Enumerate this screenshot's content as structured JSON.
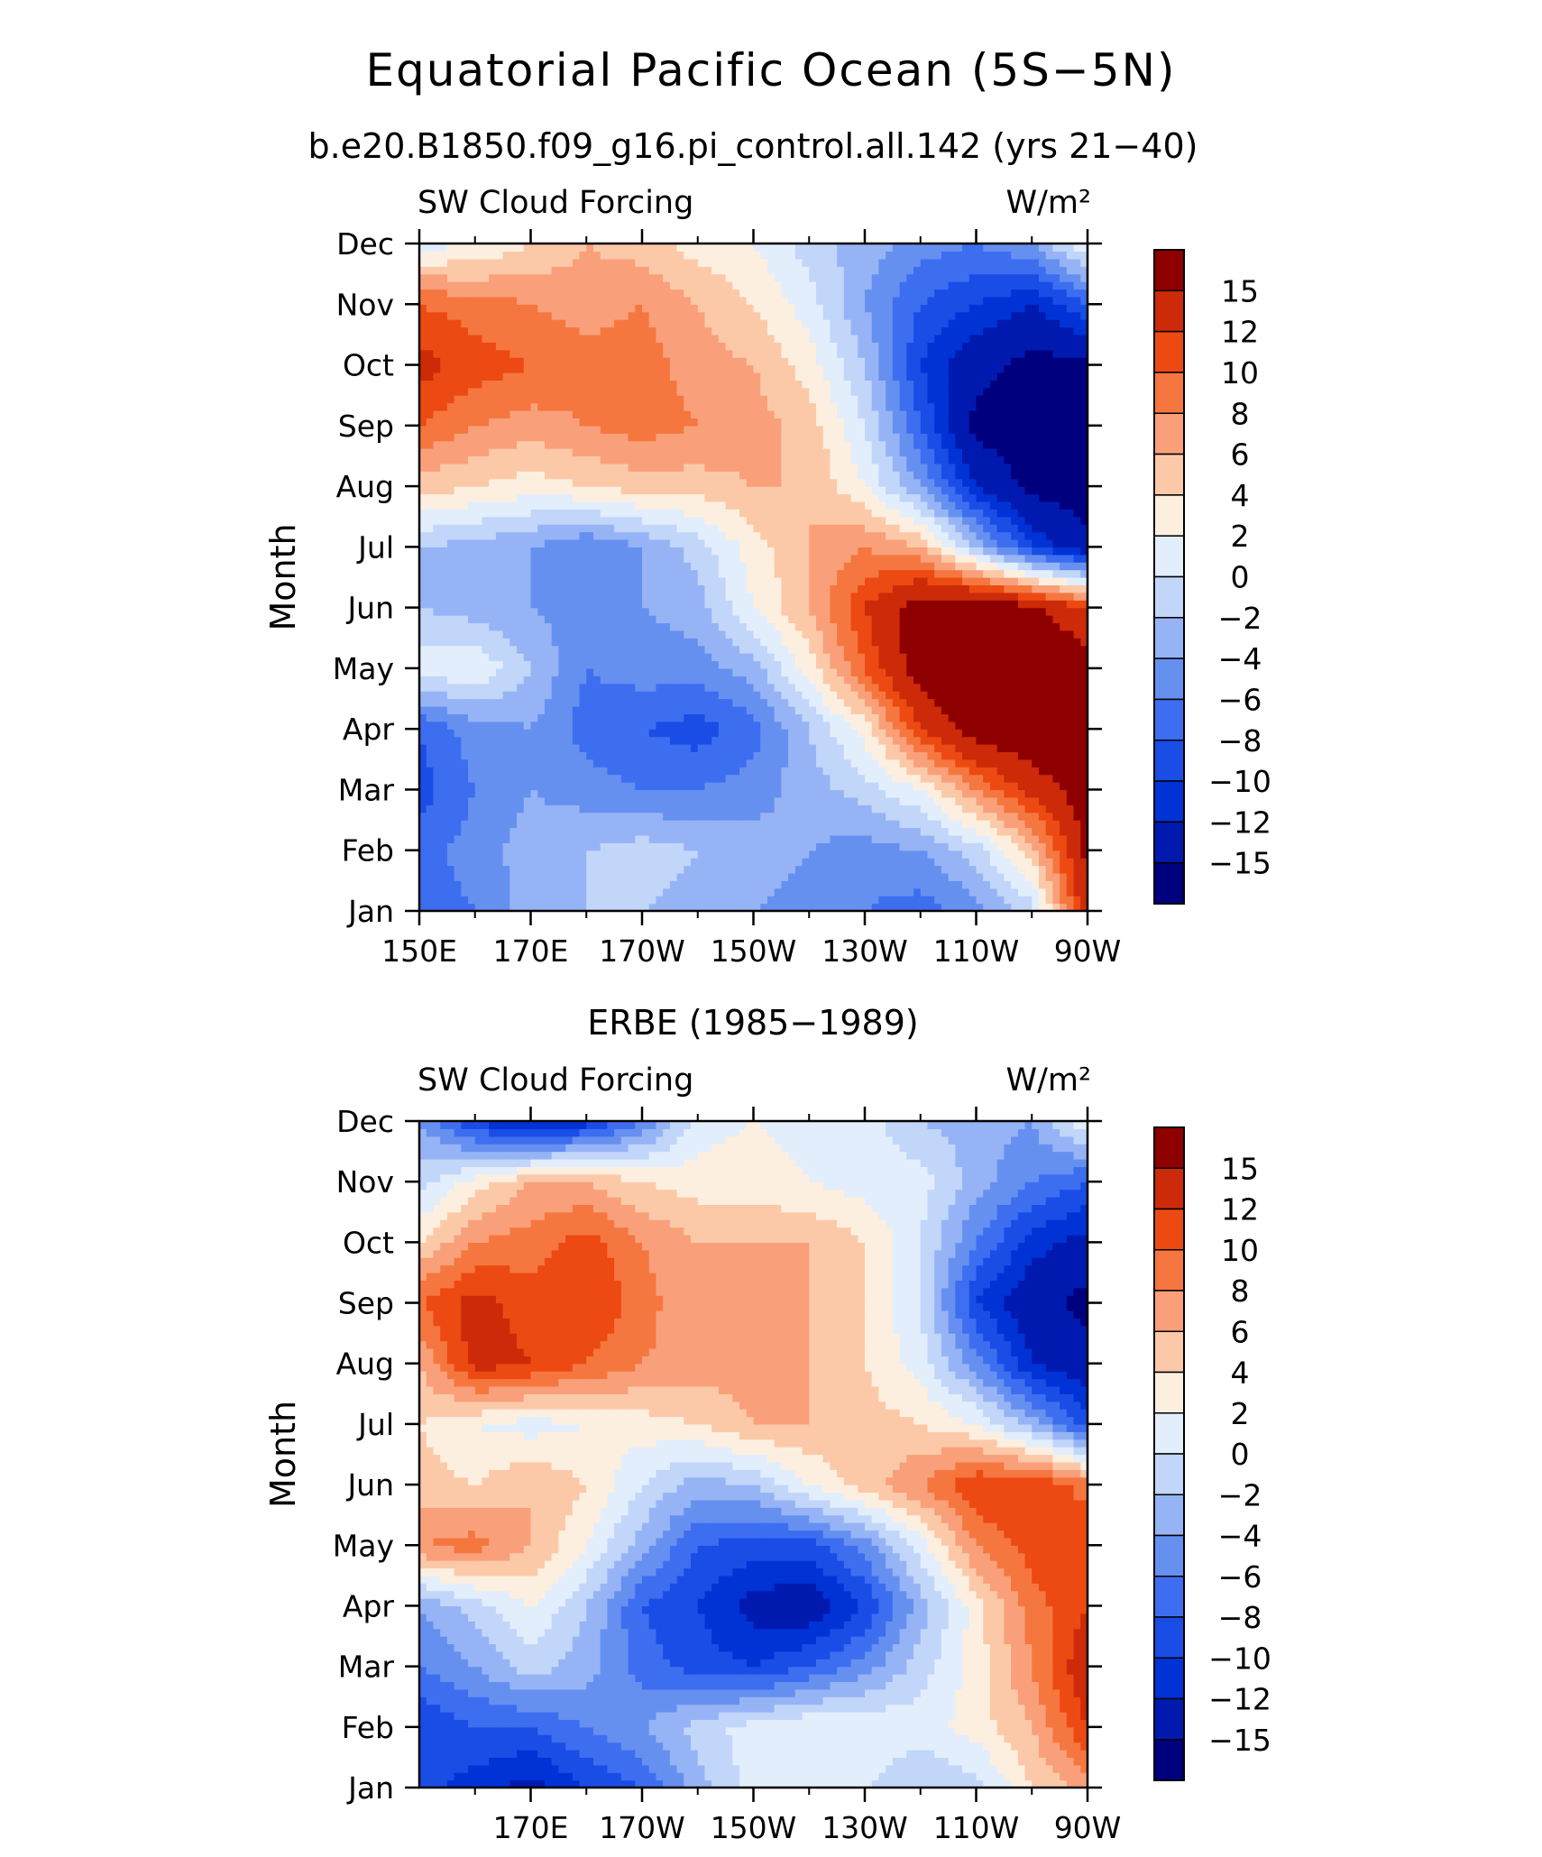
{
  "figure": {
    "title": "Equatorial Pacific Ocean (5S−5N)",
    "subtitle": "b.e20.B1850.f09_g16.pi_control.all.142 (yrs 21−40)",
    "second_title": "ERBE (1985−1989)"
  },
  "colorbar": {
    "levels": [
      -15,
      -12,
      -10,
      -8,
      -6,
      -4,
      -2,
      0,
      2,
      4,
      6,
      8,
      10,
      12,
      15
    ],
    "labels": [
      "15",
      "12",
      "10",
      "8",
      "6",
      "4",
      "2",
      "0",
      "−2",
      "−4",
      "−6",
      "−8",
      "−10",
      "−12",
      "−15"
    ],
    "colors": [
      "#00007f",
      "#001ab0",
      "#0033d6",
      "#1a4de6",
      "#3d6ef0",
      "#6690f0",
      "#96b4f5",
      "#c2d6fa",
      "#e2eefc",
      "#fdefe0",
      "#fcc9a8",
      "#f9a07a",
      "#f5773f",
      "#ec4a12",
      "#cc2a08",
      "#8e0000"
    ]
  },
  "chart_data": [
    {
      "type": "heatmap",
      "title": "SW Cloud Forcing",
      "units_label": "W/m²",
      "ylabel": "Month",
      "xlabel": "",
      "x_tick_labels": [
        "150E",
        "170E",
        "170W",
        "150W",
        "130W",
        "110W",
        "90W"
      ],
      "x_tick_values": [
        150,
        170,
        190,
        210,
        230,
        250,
        270
      ],
      "xlim": [
        150,
        270
      ],
      "y_tick_labels": [
        "Jan",
        "Feb",
        "Mar",
        "Apr",
        "May",
        "Jun",
        "Jul",
        "Aug",
        "Sep",
        "Oct",
        "Nov",
        "Dec"
      ],
      "ylim": [
        "Jan",
        "Dec"
      ],
      "x": [
        150,
        160,
        170,
        180,
        190,
        200,
        210,
        220,
        230,
        240,
        250,
        260,
        270
      ],
      "y": [
        "Jan",
        "Feb",
        "Mar",
        "Apr",
        "May",
        "Jun",
        "Jul",
        "Aug",
        "Sep",
        "Oct",
        "Nov",
        "Dec"
      ],
      "z": [
        [
          -7,
          -6,
          -3,
          -2,
          -2,
          -3,
          -4,
          -5,
          -6,
          -7,
          -5,
          -1,
          14
        ],
        [
          -7,
          -5,
          -3,
          -2,
          -1,
          -2,
          -3,
          -4,
          -5,
          -4,
          -1,
          5,
          16
        ],
        [
          -9,
          -6,
          -4,
          -5,
          -6,
          -6,
          -5,
          -3,
          -1,
          2,
          8,
          13,
          17
        ],
        [
          -8,
          -5,
          -4,
          -7,
          -8,
          -9,
          -7,
          -2,
          3,
          12,
          17,
          18,
          18
        ],
        [
          1,
          2,
          -2,
          -6,
          -5,
          -5,
          -3,
          3,
          10,
          17,
          18,
          18,
          17
        ],
        [
          -2,
          -3,
          -4,
          -5,
          -4,
          -3,
          2,
          6,
          12,
          17,
          18,
          16,
          12
        ],
        [
          -2,
          -3,
          -4,
          -6,
          -4,
          -1,
          3,
          6,
          8,
          6,
          -2,
          -10,
          -14
        ],
        [
          5,
          4,
          3,
          4,
          5,
          5,
          6,
          6,
          2,
          -4,
          -12,
          -16,
          -17
        ],
        [
          10,
          8,
          7,
          8,
          9,
          8,
          7,
          5,
          0,
          -8,
          -16,
          -17,
          -17
        ],
        [
          13,
          11,
          10,
          9,
          9,
          7,
          6,
          3,
          -2,
          -10,
          -14,
          -16,
          -16
        ],
        [
          10,
          9,
          8,
          7,
          8,
          6,
          4,
          1,
          -4,
          -8,
          -10,
          -12,
          -8
        ],
        [
          1,
          2,
          4,
          6,
          5,
          3,
          2,
          -1,
          -3,
          -5,
          -6,
          -4,
          2
        ]
      ]
    },
    {
      "type": "heatmap",
      "title": "SW Cloud Forcing",
      "units_label": "W/m²",
      "ylabel": "Month",
      "xlabel": "",
      "x_tick_labels": [
        "170E",
        "170W",
        "150W",
        "130W",
        "110W",
        "90W"
      ],
      "x_tick_values": [
        170,
        190,
        210,
        230,
        250,
        270
      ],
      "xlim": [
        150,
        270
      ],
      "y_tick_labels": [
        "Jan",
        "Feb",
        "Mar",
        "Apr",
        "May",
        "Jun",
        "Jul",
        "Aug",
        "Sep",
        "Oct",
        "Nov",
        "Dec"
      ],
      "ylim": [
        "Jan",
        "Dec"
      ],
      "x": [
        150,
        160,
        170,
        180,
        190,
        200,
        210,
        220,
        230,
        240,
        250,
        260,
        270
      ],
      "y": [
        "Jan",
        "Feb",
        "Mar",
        "Apr",
        "May",
        "Jun",
        "Jul",
        "Aug",
        "Sep",
        "Oct",
        "Nov",
        "Dec"
      ],
      "z": [
        [
          -9,
          -11,
          -13,
          -10,
          -8,
          -3,
          1,
          2,
          0,
          -2,
          -1,
          4,
          7
        ],
        [
          -10,
          -8,
          -8,
          -6,
          -4,
          -1,
          1,
          2,
          2,
          1,
          3,
          6,
          12
        ],
        [
          -6,
          -4,
          -1,
          -3,
          -7,
          -9,
          -10,
          -8,
          -5,
          -1,
          3,
          8,
          14
        ],
        [
          -4,
          -1,
          2,
          -2,
          -8,
          -10,
          -13,
          -14,
          -10,
          -3,
          3,
          9,
          12
        ],
        [
          8,
          9,
          6,
          2,
          -3,
          -8,
          -9,
          -9,
          -5,
          1,
          8,
          11,
          12
        ],
        [
          5,
          4,
          6,
          4,
          0,
          -3,
          -2,
          2,
          5,
          8,
          12,
          12,
          9
        ],
        [
          4,
          2,
          1,
          2,
          3,
          4,
          6,
          6,
          5,
          4,
          2,
          -3,
          -9
        ],
        [
          6,
          13,
          12,
          10,
          8,
          7,
          7,
          6,
          4,
          1,
          -5,
          -12,
          -14
        ],
        [
          10,
          13,
          11,
          12,
          9,
          6,
          7,
          6,
          4,
          0,
          -10,
          -14,
          -16
        ],
        [
          4,
          8,
          9,
          11,
          8,
          6,
          6,
          6,
          4,
          0,
          -6,
          -11,
          -13
        ],
        [
          -1,
          3,
          6,
          6,
          4,
          3,
          3,
          2,
          1,
          1,
          -3,
          -6,
          -8
        ],
        [
          -4,
          -10,
          -13,
          -11,
          -6,
          1,
          2,
          1,
          1,
          -2,
          -3,
          -4,
          2
        ]
      ]
    }
  ]
}
